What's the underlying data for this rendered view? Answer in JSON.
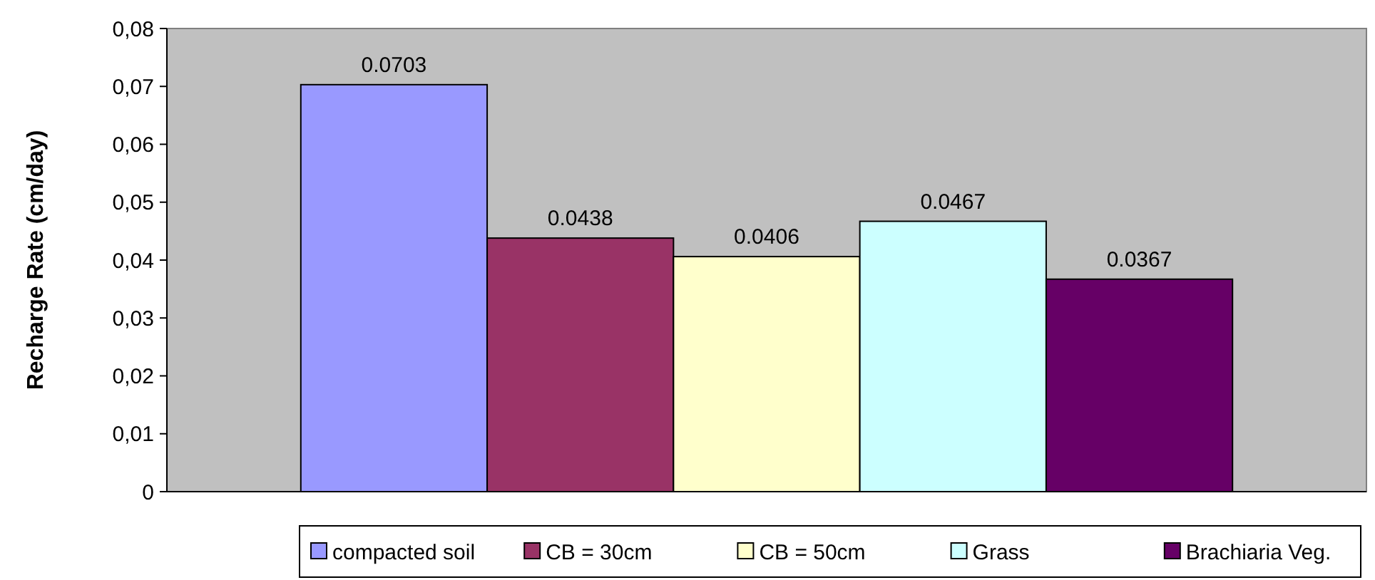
{
  "chart_data": {
    "type": "bar",
    "ylabel": "Recharge Rate (cm/day)",
    "categories": [
      null
    ],
    "series": [
      {
        "name": "compacted soil",
        "color": "#9999ff",
        "values": [
          0.0703
        ]
      },
      {
        "name": "CB = 30cm",
        "color": "#993366",
        "values": [
          0.0438
        ]
      },
      {
        "name": "CB = 50cm",
        "color": "#ffffcc",
        "values": [
          0.0406
        ]
      },
      {
        "name": "Grass",
        "color": "#ccffff",
        "values": [
          0.0467
        ]
      },
      {
        "name": "Brachiaria Veg.",
        "color": "#660066",
        "values": [
          0.0367
        ]
      }
    ],
    "ylim": [
      0,
      0.08
    ],
    "yticks": [
      {
        "value": 0,
        "label": "0"
      },
      {
        "value": 0.01,
        "label": "0,01"
      },
      {
        "value": 0.02,
        "label": "0,02"
      },
      {
        "value": 0.03,
        "label": "0,03"
      },
      {
        "value": 0.04,
        "label": "0,04"
      },
      {
        "value": 0.05,
        "label": "0,05"
      },
      {
        "value": 0.06,
        "label": "0,06"
      },
      {
        "value": 0.07,
        "label": "0,07"
      },
      {
        "value": 0.08,
        "label": "0,08"
      }
    ],
    "data_labels": true,
    "grid": false,
    "legend": "bottom"
  }
}
